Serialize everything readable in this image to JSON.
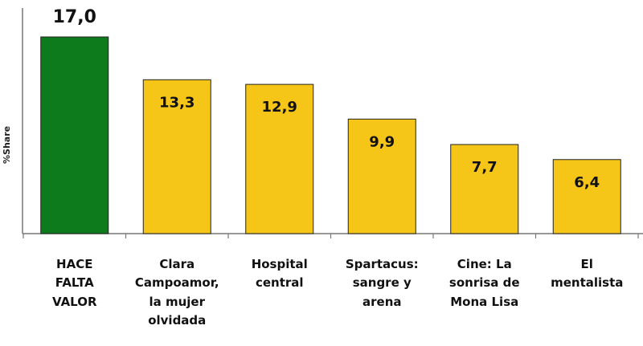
{
  "chart_data": {
    "type": "bar",
    "ylabel": "%Share",
    "xlabel": "",
    "title": "",
    "ylim": [
      0,
      17.0
    ],
    "categories": [
      "HACE\nFALTA\nVALOR",
      "Clara\nCampoamor,\nla mujer\nolvidada",
      "Hospital\ncentral",
      "Spartacus:\nsangre y\narena",
      "Cine: La\nsonrisa de\nMona Lisa",
      "El\nmentalista"
    ],
    "values": [
      17.0,
      13.3,
      12.9,
      9.9,
      7.7,
      6.4
    ],
    "value_labels": [
      "17,0",
      "13,3",
      "12,9",
      "9,9",
      "7,7",
      "6,4"
    ],
    "colors": [
      "#0d7a1c",
      "#f5c518",
      "#f5c518",
      "#f5c518",
      "#f5c518",
      "#f5c518"
    ],
    "bar_border": "#222222"
  }
}
